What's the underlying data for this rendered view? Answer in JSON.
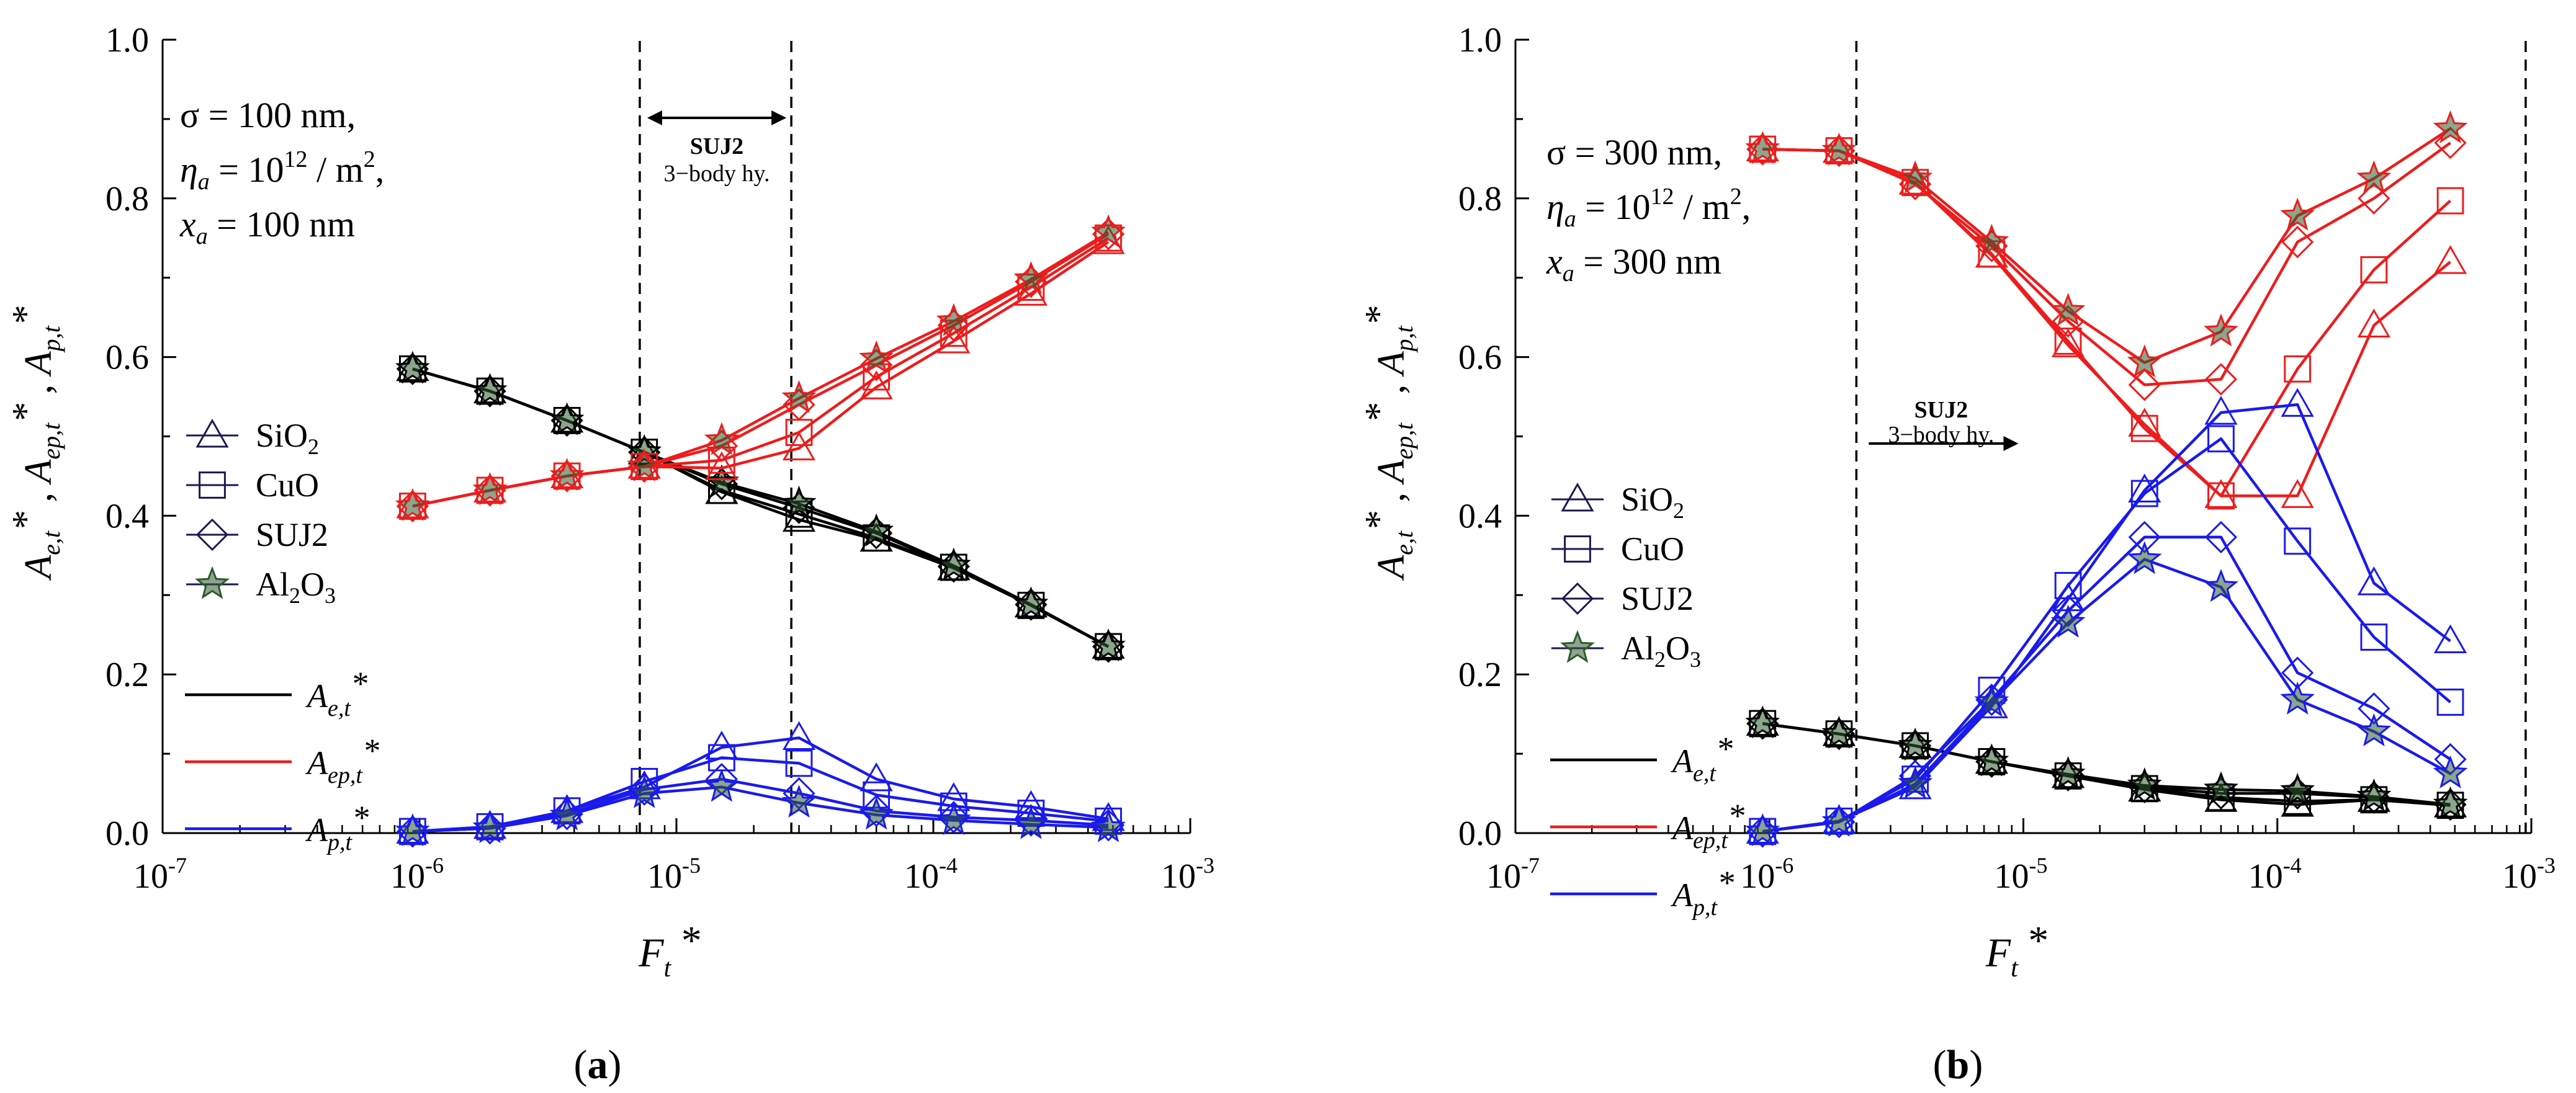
{
  "colors": {
    "Ae": "#000000",
    "Aep": "#ee1c1c",
    "Ap": "#1a1aee",
    "Al2O3_marker": "#2e5b2e",
    "axis": "#000000"
  },
  "marker_names": [
    "triangle",
    "square",
    "diamond",
    "star"
  ],
  "materials": [
    "SiO",
    "CuO",
    "SUJ2",
    "Al"
  ],
  "materials_sub": [
    "2",
    "",
    "",
    "2"
  ],
  "materials_tail": [
    "",
    "",
    "",
    "O"
  ],
  "materials_tail_sub": [
    "",
    "",
    "",
    "3"
  ],
  "legend_lines": {
    "Ae": {
      "base": "A",
      "sub": "e,t",
      "star": "*"
    },
    "Aep": {
      "base": "A",
      "sub": "ep,t",
      "star": "*"
    },
    "Ap": {
      "base": "A",
      "sub": "p,t",
      "star": "*"
    }
  },
  "x_ticks": [
    {
      "base": "10",
      "exp": "-7"
    },
    {
      "base": "10",
      "exp": "-6"
    },
    {
      "base": "10",
      "exp": "-5"
    },
    {
      "base": "10",
      "exp": "-4"
    },
    {
      "base": "10",
      "exp": "-3"
    }
  ],
  "y_ticks": [
    "0.0",
    "0.2",
    "0.4",
    "0.6",
    "0.8",
    "1.0"
  ],
  "chart_data": [
    {
      "type": "line",
      "panel_label": "a",
      "xlabel": "Ft*",
      "ylabel": "Ae,t*, Aep,t*, Ap,t*",
      "x_scale": "log",
      "xlim": [
        1e-07,
        0.001
      ],
      "ylim": [
        0,
        1.0
      ],
      "annotation": {
        "sigma": "σ = 100 nm,",
        "eta_label": "η",
        "eta_sub": "a",
        "eta_value": " = 10",
        "eta_exp": "12",
        "eta_unit": " / m",
        "eta_unit_exp": "2",
        "eta_comma": ",",
        "x_label": "x",
        "x_sub": "a",
        "x_value": " = 100 nm"
      },
      "vlines": [
        7.2e-06,
        2.8e-05
      ],
      "region": {
        "title": "SUJ2",
        "subtitle": "3−body hy.",
        "x_range": [
          7.2e-06,
          2.8e-05
        ],
        "arrow": "both"
      },
      "x": [
        9.4e-07,
        1.88e-06,
        3.75e-06,
        7.5e-06,
        1.5e-05,
        3e-05,
        6e-05,
        0.00012,
        0.00024,
        0.00048
      ],
      "series": [
        {
          "quantity": "Ae",
          "material": "SiO2",
          "values": [
            0.585,
            0.557,
            0.52,
            0.48,
            0.43,
            0.395,
            0.37,
            0.334,
            0.287,
            0.235
          ]
        },
        {
          "quantity": "Ae",
          "material": "CuO",
          "values": [
            0.585,
            0.557,
            0.52,
            0.48,
            0.432,
            0.402,
            0.372,
            0.335,
            0.287,
            0.235
          ]
        },
        {
          "quantity": "Ae",
          "material": "SUJ2",
          "values": [
            0.585,
            0.557,
            0.52,
            0.48,
            0.44,
            0.41,
            0.378,
            0.336,
            0.288,
            0.235
          ]
        },
        {
          "quantity": "Ae",
          "material": "Al2O3",
          "values": [
            0.585,
            0.557,
            0.52,
            0.48,
            0.442,
            0.415,
            0.38,
            0.337,
            0.288,
            0.235
          ]
        },
        {
          "quantity": "Aep",
          "material": "SiO2",
          "values": [
            0.412,
            0.432,
            0.45,
            0.462,
            0.46,
            0.485,
            0.562,
            0.62,
            0.68,
            0.745
          ]
        },
        {
          "quantity": "Aep",
          "material": "CuO",
          "values": [
            0.412,
            0.432,
            0.45,
            0.462,
            0.47,
            0.505,
            0.575,
            0.63,
            0.688,
            0.75
          ]
        },
        {
          "quantity": "Aep",
          "material": "SUJ2",
          "values": [
            0.412,
            0.432,
            0.45,
            0.462,
            0.488,
            0.54,
            0.59,
            0.64,
            0.695,
            0.755
          ]
        },
        {
          "quantity": "Aep",
          "material": "Al2O3",
          "values": [
            0.412,
            0.432,
            0.45,
            0.462,
            0.495,
            0.548,
            0.598,
            0.645,
            0.698,
            0.757
          ]
        },
        {
          "quantity": "Ap",
          "material": "SiO2",
          "values": [
            0.002,
            0.008,
            0.028,
            0.058,
            0.108,
            0.12,
            0.068,
            0.043,
            0.033,
            0.018
          ]
        },
        {
          "quantity": "Ap",
          "material": "CuO",
          "values": [
            0.002,
            0.008,
            0.028,
            0.065,
            0.095,
            0.088,
            0.048,
            0.034,
            0.025,
            0.015
          ]
        },
        {
          "quantity": "Ap",
          "material": "SUJ2",
          "values": [
            0.002,
            0.006,
            0.024,
            0.055,
            0.068,
            0.05,
            0.028,
            0.02,
            0.016,
            0.01
          ]
        },
        {
          "quantity": "Ap",
          "material": "Al2O3",
          "values": [
            0.002,
            0.006,
            0.022,
            0.05,
            0.058,
            0.038,
            0.023,
            0.016,
            0.011,
            0.007
          ]
        }
      ]
    },
    {
      "type": "line",
      "panel_label": "b",
      "xlabel": "Ft*",
      "ylabel": "Ae,t*, Aep,t*, Ap,t*",
      "x_scale": "log",
      "xlim": [
        1e-07,
        0.001
      ],
      "ylim": [
        0,
        1.0
      ],
      "annotation": {
        "sigma": "σ = 300 nm,",
        "eta_label": "η",
        "eta_sub": "a",
        "eta_value": " = 10",
        "eta_exp": "12",
        "eta_unit": " / m",
        "eta_unit_exp": "2",
        "eta_comma": ",",
        "x_label": "x",
        "x_sub": "a",
        "x_value": " = 300 nm"
      },
      "vlines": [
        2.2e-06,
        0.00095
      ],
      "region": {
        "title": "SUJ2",
        "subtitle": "3−body hy.",
        "x_range": [
          2.2e-06,
          1e-05
        ],
        "arrow": "right"
      },
      "x": [
        9.4e-07,
        1.88e-06,
        3.75e-06,
        7.5e-06,
        1.5e-05,
        3e-05,
        6e-05,
        0.00012,
        0.00024,
        0.00048
      ],
      "series": [
        {
          "quantity": "Ae",
          "material": "SiO2",
          "values": [
            0.138,
            0.125,
            0.11,
            0.09,
            0.072,
            0.055,
            0.042,
            0.036,
            0.042,
            0.035
          ]
        },
        {
          "quantity": "Ae",
          "material": "CuO",
          "values": [
            0.138,
            0.125,
            0.11,
            0.09,
            0.072,
            0.056,
            0.045,
            0.04,
            0.042,
            0.035
          ]
        },
        {
          "quantity": "Ae",
          "material": "SUJ2",
          "values": [
            0.138,
            0.125,
            0.11,
            0.09,
            0.073,
            0.058,
            0.05,
            0.05,
            0.045,
            0.036
          ]
        },
        {
          "quantity": "Ae",
          "material": "Al2O3",
          "values": [
            0.138,
            0.125,
            0.11,
            0.09,
            0.074,
            0.06,
            0.055,
            0.053,
            0.046,
            0.036
          ]
        },
        {
          "quantity": "Aep",
          "material": "SiO2",
          "values": [
            0.862,
            0.86,
            0.82,
            0.728,
            0.615,
            0.515,
            0.425,
            0.425,
            0.64,
            0.72
          ]
        },
        {
          "quantity": "Aep",
          "material": "CuO",
          "values": [
            0.862,
            0.86,
            0.82,
            0.73,
            0.62,
            0.51,
            0.425,
            0.585,
            0.71,
            0.797
          ]
        },
        {
          "quantity": "Aep",
          "material": "SUJ2",
          "values": [
            0.862,
            0.86,
            0.818,
            0.74,
            0.645,
            0.565,
            0.572,
            0.745,
            0.8,
            0.87
          ]
        },
        {
          "quantity": "Aep",
          "material": "Al2O3",
          "values": [
            0.862,
            0.86,
            0.825,
            0.745,
            0.658,
            0.593,
            0.632,
            0.778,
            0.825,
            0.888
          ]
        },
        {
          "quantity": "Ap",
          "material": "SiO2",
          "values": [
            0.002,
            0.015,
            0.058,
            0.16,
            0.295,
            0.432,
            0.53,
            0.54,
            0.315,
            0.242
          ]
        },
        {
          "quantity": "Ap",
          "material": "CuO",
          "values": [
            0.002,
            0.015,
            0.068,
            0.18,
            0.312,
            0.428,
            0.497,
            0.368,
            0.247,
            0.165
          ]
        },
        {
          "quantity": "Ap",
          "material": "SUJ2",
          "values": [
            0.002,
            0.014,
            0.072,
            0.168,
            0.28,
            0.373,
            0.373,
            0.202,
            0.157,
            0.093
          ]
        },
        {
          "quantity": "Ap",
          "material": "Al2O3",
          "values": [
            0.002,
            0.014,
            0.062,
            0.165,
            0.265,
            0.345,
            0.31,
            0.168,
            0.128,
            0.075
          ]
        }
      ]
    }
  ]
}
